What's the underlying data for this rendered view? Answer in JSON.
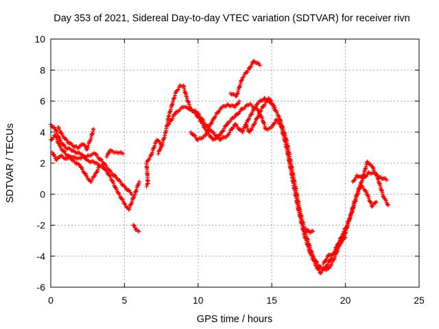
{
  "chart_data": {
    "type": "scatter",
    "title": "Day 353 of 2021, Sidereal Day-to-day VTEC variation (SDTVAR) for receiver rivn",
    "xlabel": "GPS time / hours",
    "ylabel": "SDTVAR / TECUs",
    "xlim": [
      0,
      25
    ],
    "ylim": [
      -6,
      10
    ],
    "x_ticks": [
      0,
      5,
      10,
      15,
      20,
      25
    ],
    "y_ticks": [
      -6,
      -4,
      -2,
      0,
      2,
      4,
      6,
      8,
      10
    ],
    "grid": true,
    "marker": "plus",
    "series": [
      {
        "name": "rivn",
        "color": "#ff0000",
        "tracks": [
          [
            [
              0.0,
              4.5
            ],
            [
              0.3,
              4.2
            ],
            [
              0.6,
              3.5
            ],
            [
              1.0,
              3.0
            ],
            [
              1.5,
              2.8
            ],
            [
              2.0,
              2.6
            ],
            [
              2.5,
              2.2
            ],
            [
              3.0,
              2.0
            ],
            [
              3.5,
              1.8
            ],
            [
              4.0,
              1.2
            ],
            [
              4.5,
              0.2
            ],
            [
              5.0,
              -0.6
            ],
            [
              5.3,
              -1.0
            ],
            [
              5.7,
              0.0
            ],
            [
              6.0,
              0.8
            ]
          ],
          [
            [
              0.0,
              3.5
            ],
            [
              0.3,
              3.8
            ],
            [
              0.6,
              3.1
            ],
            [
              1.0,
              2.6
            ],
            [
              1.5,
              2.2
            ],
            [
              2.0,
              1.8
            ],
            [
              2.4,
              1.2
            ],
            [
              2.7,
              0.8
            ],
            [
              3.0,
              1.2
            ],
            [
              3.3,
              1.8
            ]
          ],
          [
            [
              0.1,
              2.7
            ],
            [
              0.4,
              2.2
            ],
            [
              0.7,
              2.5
            ],
            [
              1.0,
              2.3
            ],
            [
              1.5,
              2.4
            ],
            [
              2.0,
              2.3
            ],
            [
              2.5,
              2.5
            ],
            [
              3.0,
              2.6
            ],
            [
              3.5,
              2.1
            ],
            [
              4.0,
              1.5
            ],
            [
              4.5,
              1.0
            ],
            [
              5.0,
              0.5
            ],
            [
              5.5,
              0.0
            ]
          ],
          [
            [
              2.4,
              2.9
            ],
            [
              2.7,
              3.5
            ],
            [
              2.9,
              4.2
            ]
          ],
          [
            [
              3.8,
              2.4
            ],
            [
              4.0,
              2.8
            ],
            [
              4.5,
              2.7
            ],
            [
              4.9,
              2.6
            ]
          ],
          [
            [
              0.5,
              4.3
            ],
            [
              0.8,
              3.8
            ],
            [
              1.2,
              3.3
            ],
            [
              1.8,
              3.0
            ],
            [
              2.2,
              3.2
            ],
            [
              2.5,
              2.9
            ]
          ],
          [
            [
              5.6,
              -2.0
            ],
            [
              5.8,
              -2.3
            ],
            [
              6.0,
              -2.4
            ]
          ],
          [
            [
              6.5,
              0.5
            ],
            [
              6.6,
              0.7
            ],
            [
              6.5,
              2.0
            ],
            [
              6.8,
              2.5
            ],
            [
              7.0,
              3.0
            ],
            [
              7.2,
              3.5
            ],
            [
              7.5,
              3.2
            ],
            [
              7.3,
              2.6
            ]
          ],
          [
            [
              7.5,
              3.0
            ],
            [
              7.8,
              4.0
            ],
            [
              8.0,
              5.0
            ],
            [
              8.3,
              6.0
            ],
            [
              8.5,
              6.6
            ],
            [
              8.8,
              7.0
            ],
            [
              9.0,
              7.0
            ],
            [
              9.2,
              6.3
            ],
            [
              9.5,
              5.5
            ],
            [
              10.0,
              5.2
            ],
            [
              10.5,
              4.5
            ],
            [
              11.0,
              4.0
            ],
            [
              11.5,
              3.5
            ],
            [
              12.0,
              3.8
            ],
            [
              12.5,
              4.5
            ],
            [
              13.0,
              4.0
            ],
            [
              13.5,
              5.0
            ],
            [
              14.0,
              5.8
            ],
            [
              14.5,
              6.2
            ],
            [
              15.0,
              5.8
            ],
            [
              15.5,
              5.0
            ],
            [
              16.0,
              3.5
            ],
            [
              16.3,
              2.0
            ],
            [
              16.6,
              0.5
            ],
            [
              16.9,
              -1.0
            ],
            [
              17.2,
              -2.2
            ],
            [
              17.5,
              -3.2
            ],
            [
              17.8,
              -4.0
            ],
            [
              18.1,
              -4.5
            ],
            [
              18.4,
              -4.8
            ],
            [
              18.7,
              -4.9
            ],
            [
              19.0,
              -4.6
            ],
            [
              19.3,
              -4.0
            ],
            [
              19.6,
              -3.3
            ],
            [
              20.0,
              -2.5
            ],
            [
              20.3,
              -1.5
            ],
            [
              20.6,
              -0.5
            ],
            [
              21.0,
              0.5
            ],
            [
              21.3,
              1.5
            ],
            [
              21.5,
              2.1
            ],
            [
              21.8,
              1.8
            ],
            [
              22.2,
              1.0
            ],
            [
              22.6,
              -0.2
            ],
            [
              22.9,
              -0.7
            ]
          ],
          [
            [
              8.0,
              4.5
            ],
            [
              8.5,
              5.3
            ],
            [
              9.0,
              5.6
            ],
            [
              9.5,
              5.5
            ],
            [
              10.0,
              5.0
            ],
            [
              10.5,
              4.2
            ],
            [
              11.0,
              3.5
            ],
            [
              11.5,
              3.8
            ],
            [
              12.0,
              4.6
            ],
            [
              12.5,
              5.0
            ],
            [
              13.0,
              5.5
            ],
            [
              13.5,
              5.8
            ],
            [
              14.0,
              5.5
            ],
            [
              14.3,
              5.0
            ],
            [
              14.6,
              4.2
            ],
            [
              15.0,
              4.3
            ],
            [
              15.3,
              4.8
            ],
            [
              15.6,
              4.5
            ],
            [
              16.0,
              3.0
            ],
            [
              16.4,
              1.0
            ],
            [
              16.8,
              -1.0
            ],
            [
              17.2,
              -2.6
            ],
            [
              17.6,
              -3.8
            ],
            [
              18.0,
              -4.6
            ],
            [
              18.3,
              -5.1
            ],
            [
              18.6,
              -4.8
            ],
            [
              19.0,
              -4.2
            ],
            [
              19.4,
              -3.4
            ],
            [
              19.8,
              -2.6
            ],
            [
              20.2,
              -1.8
            ],
            [
              20.5,
              -1.0
            ],
            [
              20.8,
              0.0
            ],
            [
              21.0,
              0.6
            ],
            [
              21.4,
              0.2
            ],
            [
              21.8,
              -0.8
            ],
            [
              22.1,
              -0.5
            ]
          ],
          [
            [
              9.5,
              4.0
            ],
            [
              10.0,
              3.5
            ],
            [
              10.5,
              3.8
            ],
            [
              11.0,
              4.8
            ],
            [
              11.5,
              5.5
            ],
            [
              12.0,
              5.8
            ],
            [
              12.5,
              5.6
            ],
            [
              12.8,
              6.0
            ]
          ],
          [
            [
              12.2,
              6.5
            ],
            [
              12.6,
              6.3
            ],
            [
              13.0,
              7.5
            ],
            [
              13.4,
              8.0
            ],
            [
              13.8,
              8.6
            ],
            [
              14.2,
              8.3
            ]
          ],
          [
            [
              13.2,
              4.5
            ],
            [
              13.5,
              4.0
            ],
            [
              13.8,
              4.5
            ],
            [
              14.3,
              5.5
            ],
            [
              14.8,
              6.2
            ],
            [
              15.2,
              5.6
            ]
          ],
          [
            [
              17.3,
              -2.2
            ],
            [
              17.6,
              -2.5
            ],
            [
              17.8,
              -2.4
            ]
          ],
          [
            [
              18.5,
              -4.5
            ],
            [
              18.9,
              -3.9
            ],
            [
              19.3,
              -3.8
            ],
            [
              19.6,
              -3.1
            ],
            [
              20.0,
              -2.8
            ]
          ],
          [
            [
              20.5,
              0.8
            ],
            [
              20.8,
              1.2
            ],
            [
              21.2,
              1.0
            ],
            [
              21.6,
              1.4
            ],
            [
              22.0,
              1.3
            ],
            [
              22.4,
              1.1
            ],
            [
              22.8,
              0.9
            ]
          ]
        ]
      }
    ]
  }
}
